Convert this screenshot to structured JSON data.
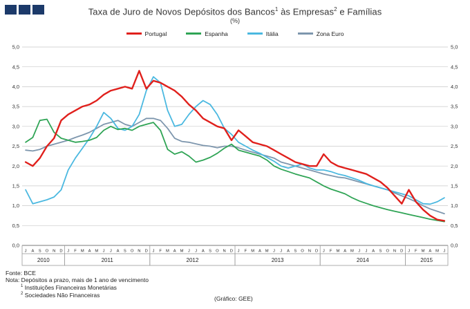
{
  "header": {
    "logo_color": "#1c3a6a",
    "title_part1": "Taxa de Juro de Novos Depósitos dos Bancos",
    "sup1": "1",
    "title_part2": " às Empresas",
    "sup2": "2",
    "title_part3": " e Famílias",
    "subtitle": "(%)"
  },
  "legend": [
    {
      "label": "Portugal",
      "color": "#e0201c"
    },
    {
      "label": "Espanha",
      "color": "#2fa455"
    },
    {
      "label": "Itália",
      "color": "#4ab8e0"
    },
    {
      "label": "Zona Euro",
      "color": "#7d96ad"
    }
  ],
  "chart_data": {
    "type": "line",
    "title": "Taxa de Juro de Novos Depósitos dos Bancos às Empresas e Famílias (%)",
    "ylabel": "%",
    "ylim": [
      0.0,
      5.0
    ],
    "ytick_step": 0.5,
    "decimal_separator": ",",
    "grid": true,
    "legend_position": "top",
    "years": [
      {
        "label": "2010",
        "months": [
          "J",
          "A",
          "S",
          "O",
          "N",
          "D"
        ]
      },
      {
        "label": "2011",
        "months": [
          "J",
          "F",
          "M",
          "A",
          "M",
          "J",
          "J",
          "A",
          "S",
          "O",
          "N",
          "D"
        ]
      },
      {
        "label": "2012",
        "months": [
          "J",
          "F",
          "M",
          "A",
          "M",
          "J",
          "J",
          "A",
          "S",
          "O",
          "N",
          "D"
        ]
      },
      {
        "label": "2013",
        "months": [
          "J",
          "F",
          "M",
          "A",
          "M",
          "J",
          "J",
          "A",
          "S",
          "O",
          "N",
          "D"
        ]
      },
      {
        "label": "2014",
        "months": [
          "J",
          "F",
          "M",
          "A",
          "M",
          "J",
          "J",
          "A",
          "S",
          "O",
          "N",
          "D"
        ]
      },
      {
        "label": "2015",
        "months": [
          "J",
          "F",
          "M",
          "A",
          "M",
          "J"
        ]
      }
    ],
    "series": [
      {
        "name": "Portugal",
        "color": "#e0201c",
        "width": 2.4,
        "values": [
          2.1,
          2.0,
          2.2,
          2.5,
          2.7,
          3.15,
          3.3,
          3.4,
          3.5,
          3.55,
          3.65,
          3.8,
          3.9,
          3.95,
          4.0,
          3.95,
          4.4,
          3.95,
          4.15,
          4.1,
          4.0,
          3.9,
          3.75,
          3.55,
          3.4,
          3.2,
          3.1,
          3.0,
          2.95,
          2.65,
          2.9,
          2.75,
          2.6,
          2.55,
          2.5,
          2.4,
          2.3,
          2.2,
          2.1,
          2.05,
          2.0,
          2.0,
          2.3,
          2.1,
          2.0,
          1.95,
          1.9,
          1.85,
          1.8,
          1.7,
          1.6,
          1.45,
          1.25,
          1.05,
          1.4,
          1.1,
          0.9,
          0.75,
          0.65,
          0.62
        ]
      },
      {
        "name": "Espanha",
        "color": "#2fa455",
        "width": 1.8,
        "values": [
          2.6,
          2.72,
          3.15,
          3.18,
          2.85,
          2.7,
          2.65,
          2.6,
          2.62,
          2.65,
          2.72,
          2.9,
          3.0,
          2.92,
          2.95,
          2.9,
          3.0,
          3.05,
          3.1,
          2.9,
          2.42,
          2.3,
          2.36,
          2.25,
          2.1,
          2.15,
          2.22,
          2.32,
          2.45,
          2.55,
          2.4,
          2.35,
          2.3,
          2.25,
          2.15,
          2.0,
          1.92,
          1.86,
          1.8,
          1.75,
          1.7,
          1.6,
          1.5,
          1.42,
          1.36,
          1.3,
          1.2,
          1.12,
          1.06,
          1.0,
          0.95,
          0.9,
          0.86,
          0.82,
          0.78,
          0.74,
          0.7,
          0.66,
          0.63,
          0.6
        ]
      },
      {
        "name": "Itália",
        "color": "#4ab8e0",
        "width": 1.8,
        "values": [
          1.4,
          1.05,
          1.1,
          1.15,
          1.22,
          1.4,
          1.9,
          2.2,
          2.45,
          2.7,
          3.0,
          3.35,
          3.2,
          2.95,
          2.9,
          3.0,
          3.3,
          3.9,
          4.25,
          4.1,
          3.4,
          3.0,
          3.05,
          3.3,
          3.5,
          3.65,
          3.55,
          3.3,
          2.95,
          2.8,
          2.6,
          2.5,
          2.4,
          2.32,
          2.22,
          2.12,
          2.0,
          1.95,
          2.0,
          2.05,
          1.95,
          1.9,
          1.9,
          1.86,
          1.8,
          1.76,
          1.7,
          1.64,
          1.56,
          1.5,
          1.45,
          1.4,
          1.35,
          1.3,
          1.25,
          1.15,
          1.05,
          1.04,
          1.1,
          1.2
        ]
      },
      {
        "name": "Zona Euro",
        "color": "#7d96ad",
        "width": 1.8,
        "values": [
          2.4,
          2.38,
          2.42,
          2.5,
          2.55,
          2.6,
          2.65,
          2.72,
          2.78,
          2.85,
          2.95,
          3.05,
          3.1,
          3.15,
          3.05,
          3.0,
          3.1,
          3.2,
          3.2,
          3.15,
          2.95,
          2.7,
          2.62,
          2.6,
          2.56,
          2.52,
          2.5,
          2.46,
          2.5,
          2.5,
          2.46,
          2.4,
          2.35,
          2.3,
          2.25,
          2.2,
          2.1,
          2.05,
          2.0,
          1.95,
          1.9,
          1.85,
          1.8,
          1.76,
          1.72,
          1.7,
          1.65,
          1.6,
          1.55,
          1.5,
          1.45,
          1.4,
          1.32,
          1.25,
          1.18,
          1.1,
          1.0,
          0.92,
          0.86,
          0.8
        ]
      }
    ]
  },
  "footer": {
    "line1": "Fonte: BCE",
    "line2": "Nota: Depósitos a prazo, mais de 1 ano de vencimento",
    "note1_sup": "1",
    "note1": " Instituições Financeiras Monetárias",
    "note2_sup": "2",
    "note2": " Sociedades Não Financeiras",
    "credit": "(Gráfico: GEE)"
  }
}
